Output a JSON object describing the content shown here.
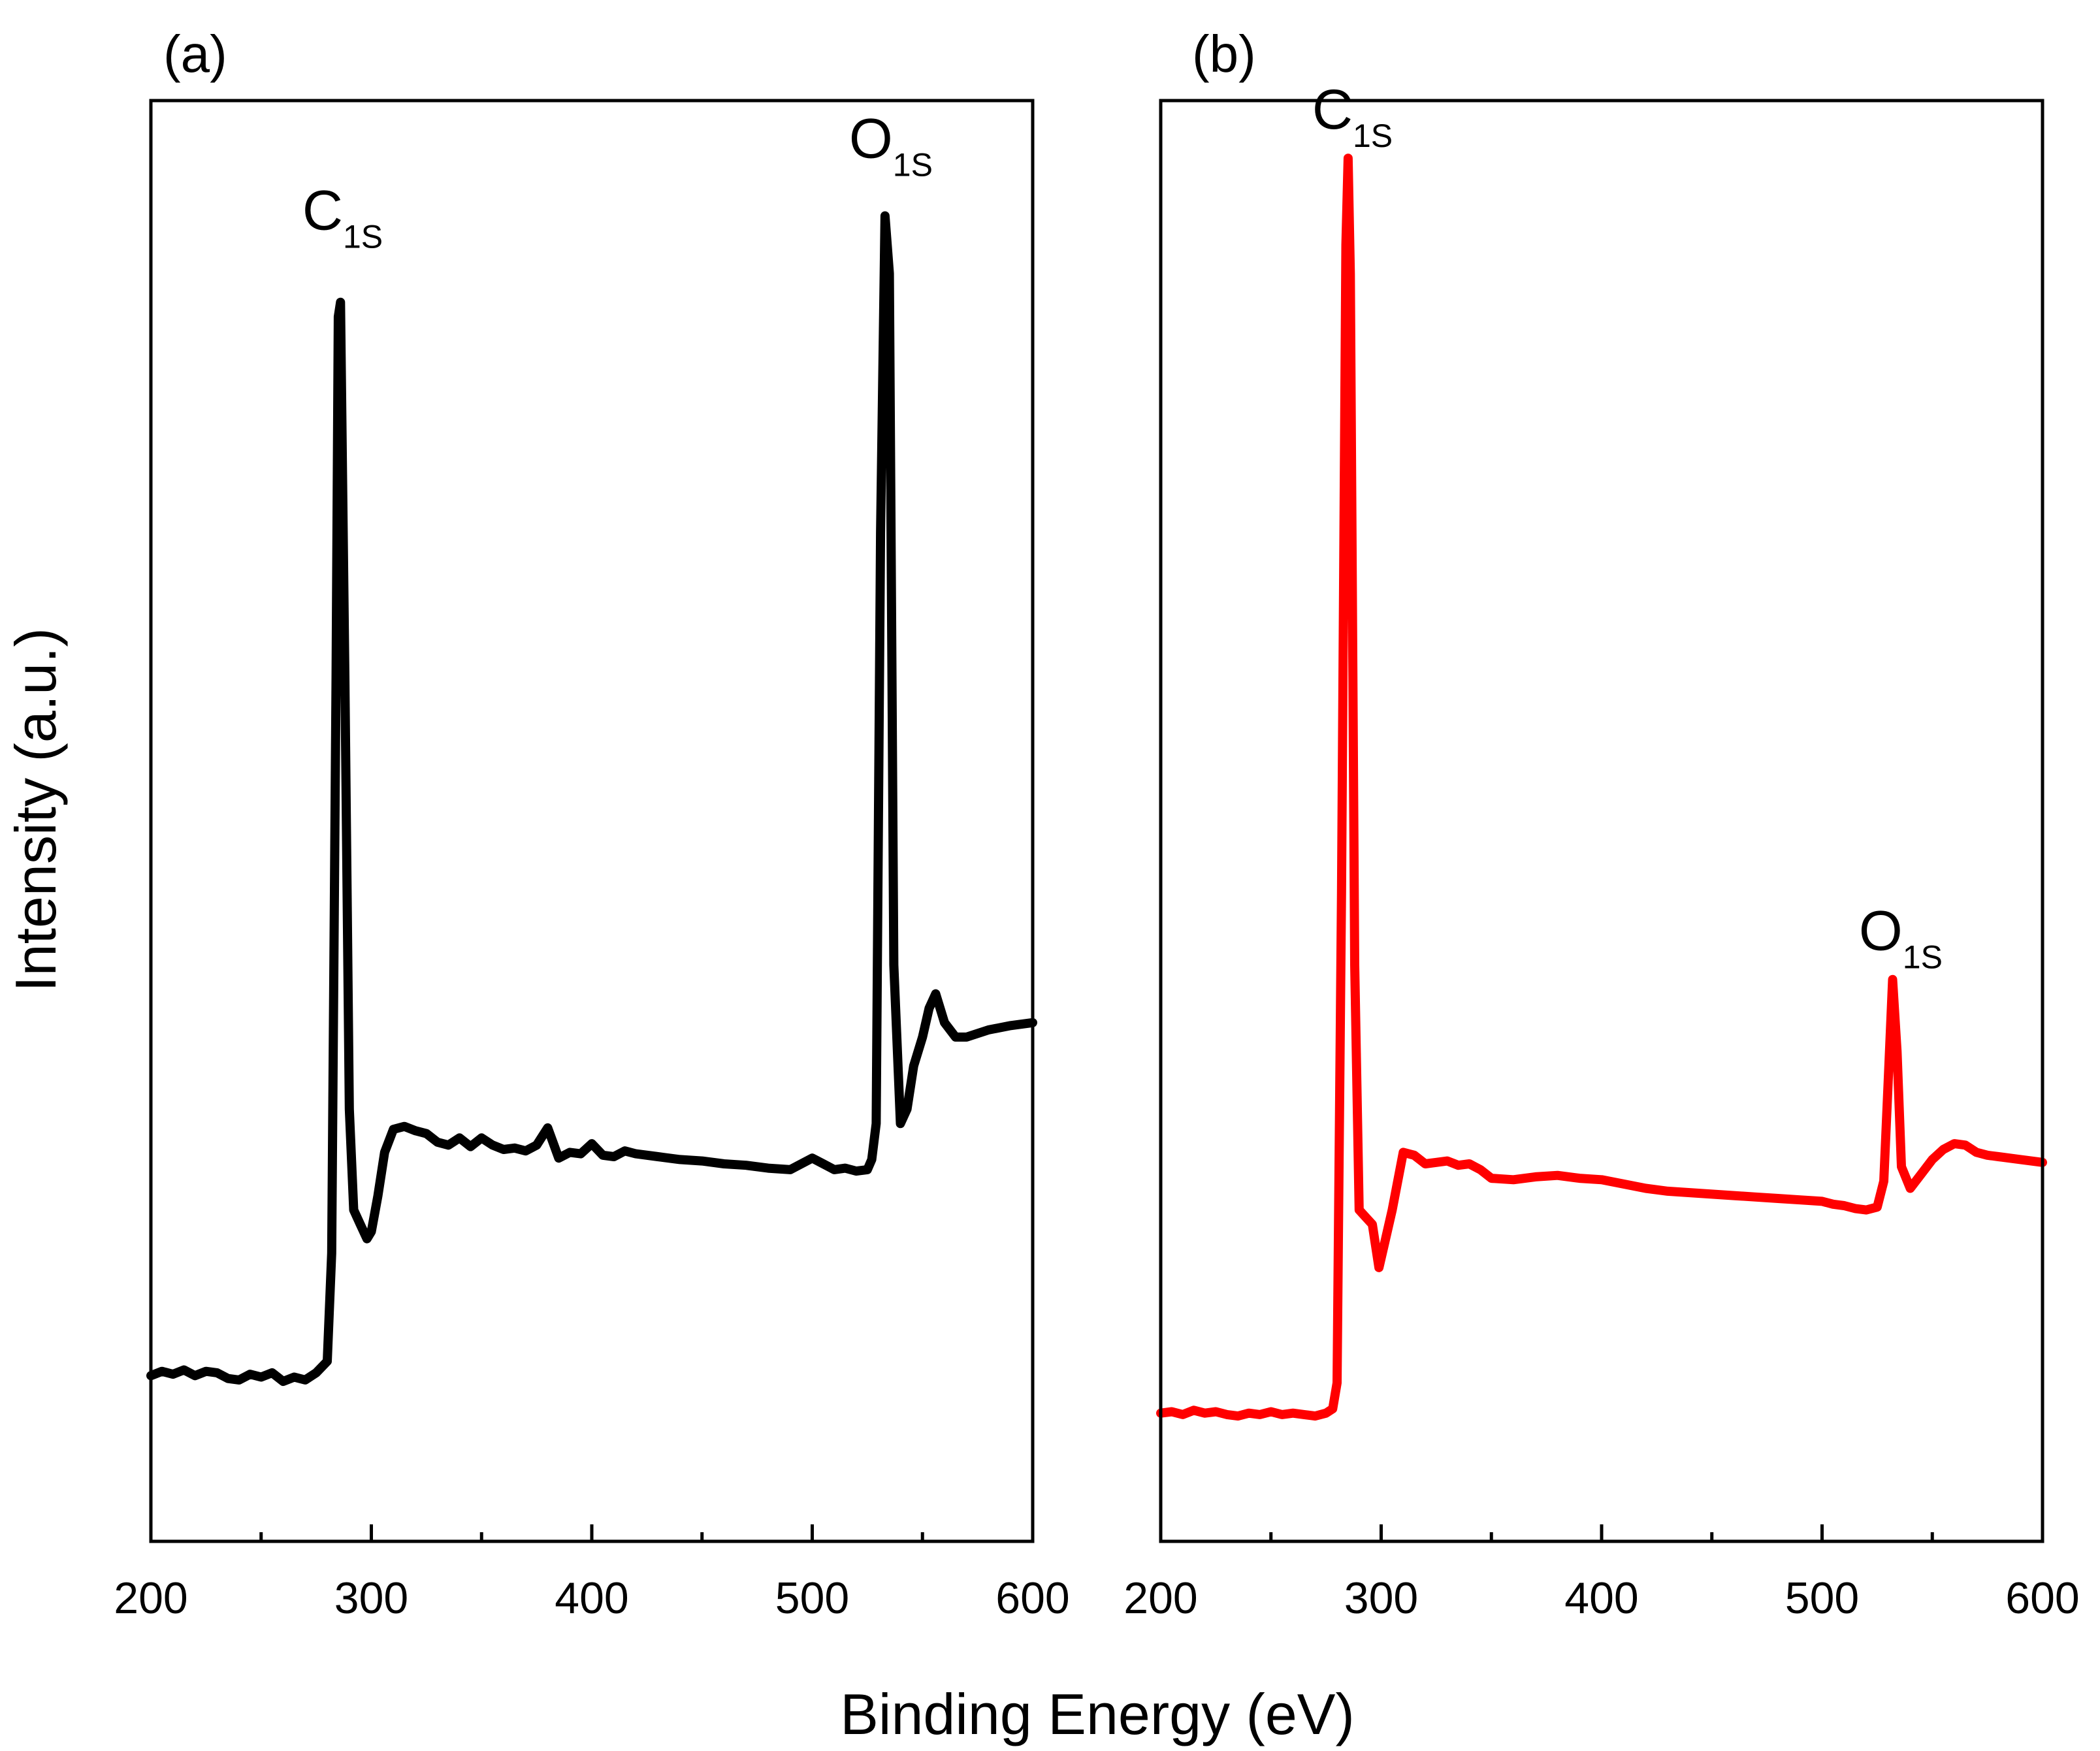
{
  "figure": {
    "xlabel": "Binding Energy (eV)",
    "ylabel": "Intensity (a.u.)"
  },
  "chart_data": [
    {
      "panel": "(a)",
      "type": "line",
      "color": "#000000",
      "xlim": [
        200,
        600
      ],
      "ylim": [
        0,
        100
      ],
      "xticks": [
        200,
        300,
        400,
        500,
        600
      ],
      "xtick_labels": [
        "200",
        "300",
        "400",
        "500",
        "600"
      ],
      "x_minor_step": 50,
      "xlabel": "Binding Energy (eV)",
      "ylabel": "Intensity (a.u.)",
      "annotations": [
        {
          "main": "C",
          "sub": "1S",
          "x": 285,
          "y": 89
        },
        {
          "main": "O",
          "sub": "1S",
          "x": 533,
          "y": 94
        }
      ],
      "series": [
        {
          "name": "(a)",
          "x": [
            200,
            205,
            210,
            215,
            220,
            225,
            230,
            235,
            240,
            245,
            250,
            255,
            260,
            265,
            270,
            275,
            280,
            282,
            284,
            285,
            286,
            288,
            290,
            292,
            295,
            298,
            300,
            303,
            306,
            310,
            315,
            320,
            325,
            330,
            335,
            340,
            345,
            350,
            355,
            360,
            365,
            370,
            375,
            380,
            385,
            390,
            395,
            400,
            405,
            410,
            415,
            420,
            430,
            440,
            450,
            460,
            470,
            480,
            490,
            500,
            505,
            510,
            515,
            520,
            525,
            527,
            529,
            531,
            533,
            535,
            537,
            540,
            543,
            546,
            550,
            553,
            556,
            560,
            565,
            570,
            580,
            590,
            600
          ],
          "values": [
            11.5,
            11.8,
            11.6,
            11.9,
            11.5,
            11.8,
            11.7,
            11.3,
            11.2,
            11.6,
            11.4,
            11.7,
            11.1,
            11.4,
            11.2,
            11.7,
            12.5,
            20,
            60,
            85,
            86,
            60,
            30,
            23,
            22,
            21,
            21.5,
            24,
            27,
            28.6,
            28.8,
            28.5,
            28.3,
            27.7,
            27.5,
            28,
            27.4,
            28,
            27.5,
            27.2,
            27.3,
            27.1,
            27.5,
            28.7,
            26.6,
            27,
            26.9,
            27.6,
            26.8,
            26.7,
            27.1,
            26.9,
            26.7,
            26.5,
            26.4,
            26.2,
            26.1,
            25.9,
            25.8,
            26.6,
            26.2,
            25.8,
            25.9,
            25.7,
            25.8,
            26.5,
            29,
            70,
            92,
            88,
            40,
            29,
            30,
            33,
            35,
            37,
            38,
            36,
            35,
            35,
            35.5,
            35.8,
            36
          ]
        }
      ]
    },
    {
      "panel": "(b)",
      "type": "line",
      "color": "#ff0000",
      "xlim": [
        200,
        600
      ],
      "ylim": [
        0,
        100
      ],
      "xticks": [
        200,
        300,
        400,
        500,
        600
      ],
      "xtick_labels": [
        "200",
        "300",
        "400",
        "500",
        "600"
      ],
      "x_minor_step": 50,
      "annotations": [
        {
          "main": "C",
          "sub": "1S",
          "x": 285,
          "y": 96
        },
        {
          "main": "O",
          "sub": "1S",
          "x": 533,
          "y": 39
        }
      ],
      "series": [
        {
          "name": "(b)",
          "x": [
            200,
            205,
            210,
            215,
            220,
            225,
            230,
            235,
            240,
            245,
            250,
            255,
            260,
            265,
            270,
            275,
            278,
            280,
            282,
            284,
            285,
            286,
            288,
            290,
            293,
            296,
            299,
            302,
            305,
            310,
            315,
            320,
            325,
            330,
            335,
            340,
            345,
            350,
            360,
            370,
            380,
            390,
            400,
            410,
            420,
            430,
            440,
            450,
            460,
            470,
            480,
            490,
            500,
            505,
            510,
            515,
            520,
            525,
            528,
            530,
            532,
            534,
            536,
            540,
            545,
            550,
            555,
            560,
            565,
            570,
            575,
            580,
            590,
            600
          ],
          "values": [
            8.9,
            9.0,
            8.8,
            9.1,
            8.9,
            9.0,
            8.8,
            8.7,
            8.9,
            8.8,
            9.0,
            8.8,
            8.9,
            8.8,
            8.7,
            8.9,
            9.2,
            11,
            45,
            90,
            96,
            88,
            40,
            23,
            22.5,
            22,
            19,
            21,
            23,
            27,
            26.8,
            26.2,
            26.3,
            26.4,
            26.1,
            26.2,
            25.8,
            25.2,
            25.1,
            25.3,
            25.4,
            25.2,
            25.1,
            24.8,
            24.5,
            24.3,
            24.2,
            24.1,
            24.0,
            23.9,
            23.8,
            23.7,
            23.6,
            23.4,
            23.3,
            23.1,
            23.0,
            23.2,
            25,
            32,
            39,
            34,
            26,
            24.5,
            25.5,
            26.5,
            27.2,
            27.6,
            27.5,
            27.0,
            26.8,
            26.7,
            26.5,
            26.3
          ]
        }
      ]
    }
  ]
}
